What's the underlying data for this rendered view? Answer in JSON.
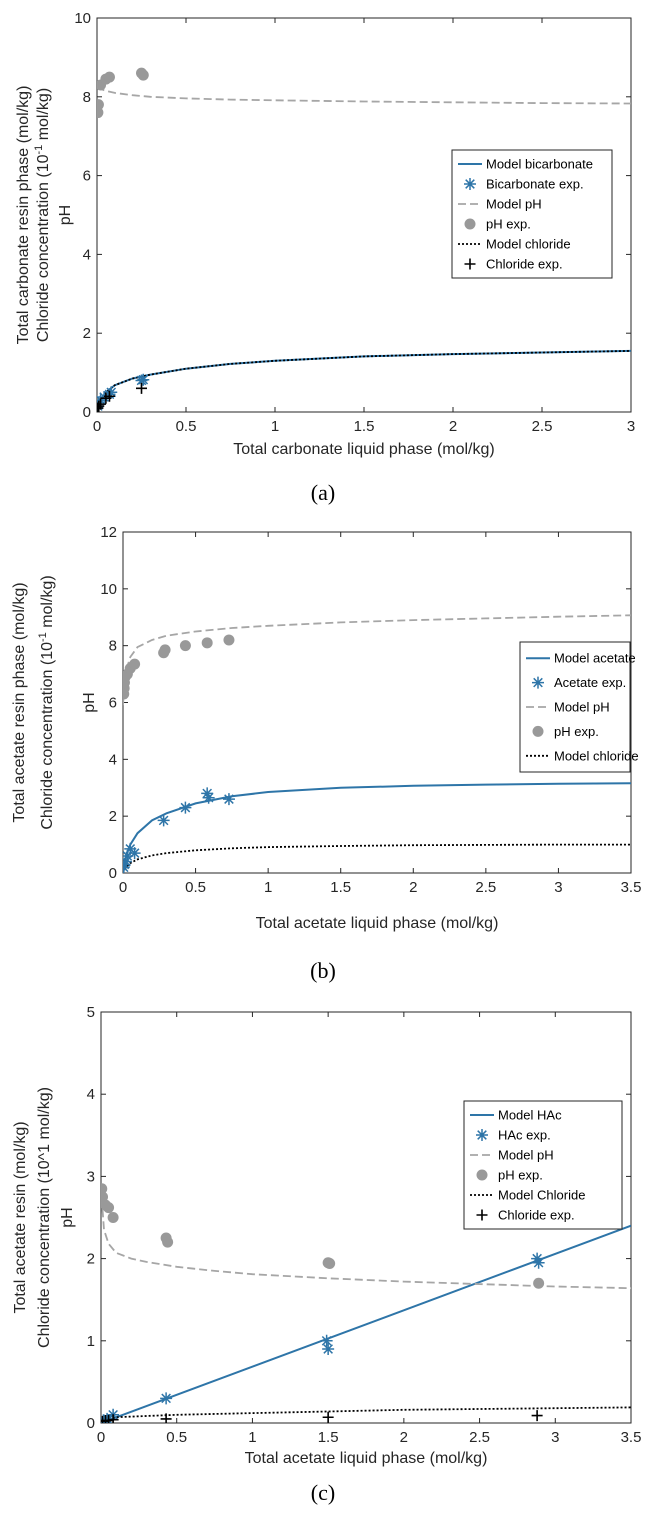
{
  "chart_data": [
    {
      "type": "line",
      "caption": "(a)",
      "xlabel": "Total carbonate liquid phase (mol/kg)",
      "ylabel_lines": [
        "Total carbonate resin phase (mol/kg)",
        "Chloride concentration (10",
        "-1",
        " mol/kg)",
        "pH"
      ],
      "xlim": [
        0,
        3
      ],
      "ylim": [
        0,
        10
      ],
      "xticks": [
        0,
        0.5,
        1,
        1.5,
        2,
        2.5,
        3
      ],
      "xtick_labels": [
        "0",
        "0.5",
        "1",
        "1.5",
        "2",
        "2.5",
        "3"
      ],
      "yticks": [
        0,
        2,
        4,
        6,
        8,
        10
      ],
      "ytick_labels": [
        "0",
        "2",
        "4",
        "6",
        "8",
        "10"
      ],
      "legend_position": "right",
      "series": [
        {
          "name": "Model bicarbonate",
          "kind": "line",
          "style": "solid",
          "color": "#2e75a8",
          "x": [
            0,
            0.02,
            0.05,
            0.1,
            0.2,
            0.3,
            0.5,
            0.75,
            1,
            1.5,
            2,
            2.5,
            3
          ],
          "y": [
            0,
            0.3,
            0.5,
            0.68,
            0.85,
            0.95,
            1.1,
            1.22,
            1.3,
            1.41,
            1.47,
            1.51,
            1.55
          ]
        },
        {
          "name": "Bicarbonate exp.",
          "kind": "marker",
          "marker": "asterisk",
          "color": "#2e75a8",
          "x": [
            0.005,
            0.01,
            0.02,
            0.04,
            0.07,
            0.08,
            0.25,
            0.26
          ],
          "y": [
            0.15,
            0.2,
            0.3,
            0.38,
            0.45,
            0.5,
            0.8,
            0.82
          ]
        },
        {
          "name": "Model pH",
          "kind": "line",
          "style": "dashed",
          "color": "#a6a6a6",
          "x": [
            0,
            0.02,
            0.05,
            0.1,
            0.2,
            0.3,
            0.5,
            0.75,
            1,
            1.5,
            2,
            2.5,
            3
          ],
          "y": [
            8.25,
            8.2,
            8.15,
            8.1,
            8.04,
            8.0,
            7.96,
            7.93,
            7.91,
            7.88,
            7.86,
            7.84,
            7.83
          ]
        },
        {
          "name": "pH exp.",
          "kind": "marker",
          "marker": "circle",
          "color": "#999999",
          "x": [
            0.005,
            0.008,
            0.02,
            0.05,
            0.07,
            0.25,
            0.26
          ],
          "y": [
            7.6,
            7.8,
            8.3,
            8.45,
            8.5,
            8.6,
            8.55
          ]
        },
        {
          "name": "Model chloride",
          "kind": "line",
          "style": "dotted",
          "color": "#000000",
          "x": [
            0,
            0.02,
            0.05,
            0.1,
            0.2,
            0.3,
            0.5,
            0.75,
            1,
            1.5,
            2,
            2.5,
            3
          ],
          "y": [
            0,
            0.3,
            0.5,
            0.68,
            0.85,
            0.95,
            1.1,
            1.22,
            1.3,
            1.41,
            1.47,
            1.51,
            1.55
          ]
        },
        {
          "name": "Chloride exp.",
          "kind": "marker",
          "marker": "plus",
          "color": "#000000",
          "x": [
            0.005,
            0.01,
            0.02,
            0.05,
            0.07,
            0.25
          ],
          "y": [
            0.1,
            0.15,
            0.2,
            0.35,
            0.4,
            0.6
          ]
        }
      ]
    },
    {
      "type": "line",
      "caption": "(b)",
      "xlabel": "Total acetate liquid phase (mol/kg)",
      "ylabel_lines": [
        "Total acetate resin phase (mol/kg)",
        "Chloride concentration (10",
        "-1",
        " mol/kg)",
        "pH"
      ],
      "xlim": [
        0,
        3.5
      ],
      "ylim": [
        0,
        12
      ],
      "xticks": [
        0,
        0.5,
        1,
        1.5,
        2,
        2.5,
        3,
        3.5
      ],
      "xtick_labels": [
        "0",
        "0.5",
        "1",
        "1.5",
        "2",
        "2.5",
        "3",
        "3.5"
      ],
      "yticks": [
        0,
        2,
        4,
        6,
        8,
        10,
        12
      ],
      "ytick_labels": [
        "0",
        "2",
        "4",
        "6",
        "8",
        "10",
        "12"
      ],
      "legend_position": "right",
      "series": [
        {
          "name": "Model acetate",
          "kind": "line",
          "style": "solid",
          "color": "#2e75a8",
          "x": [
            0,
            0.02,
            0.05,
            0.1,
            0.2,
            0.3,
            0.5,
            0.75,
            1,
            1.5,
            2,
            2.5,
            3,
            3.5
          ],
          "y": [
            0,
            0.6,
            1.0,
            1.4,
            1.85,
            2.1,
            2.45,
            2.7,
            2.85,
            3.0,
            3.07,
            3.11,
            3.14,
            3.16
          ]
        },
        {
          "name": "Acetate exp.",
          "kind": "marker",
          "marker": "asterisk",
          "color": "#2e75a8",
          "x": [
            0.005,
            0.01,
            0.02,
            0.03,
            0.05,
            0.08,
            0.28,
            0.43,
            0.58,
            0.59,
            0.73
          ],
          "y": [
            0.2,
            0.3,
            0.4,
            0.6,
            0.85,
            0.7,
            1.85,
            2.3,
            2.8,
            2.65,
            2.6
          ]
        },
        {
          "name": "Model pH",
          "kind": "line",
          "style": "dashed",
          "color": "#a6a6a6",
          "x": [
            0,
            0.01,
            0.02,
            0.05,
            0.1,
            0.2,
            0.3,
            0.5,
            0.75,
            1,
            1.5,
            2,
            2.5,
            3,
            3.5
          ],
          "y": [
            5.9,
            6.7,
            7.1,
            7.6,
            7.95,
            8.2,
            8.35,
            8.5,
            8.62,
            8.7,
            8.82,
            8.9,
            8.96,
            9.02,
            9.07
          ]
        },
        {
          "name": "pH exp.",
          "kind": "marker",
          "marker": "circle",
          "color": "#999999",
          "x": [
            0.005,
            0.008,
            0.01,
            0.015,
            0.03,
            0.05,
            0.08,
            0.28,
            0.29,
            0.43,
            0.58,
            0.73
          ],
          "y": [
            6.3,
            6.5,
            6.7,
            6.9,
            7.0,
            7.2,
            7.35,
            7.75,
            7.85,
            8.0,
            8.1,
            8.2
          ]
        },
        {
          "name": "Model chloride",
          "kind": "line",
          "style": "dotted",
          "color": "#000000",
          "x": [
            0,
            0.02,
            0.05,
            0.1,
            0.2,
            0.3,
            0.5,
            0.75,
            1,
            1.5,
            2,
            2.5,
            3,
            3.5
          ],
          "y": [
            0,
            0.2,
            0.35,
            0.48,
            0.62,
            0.7,
            0.8,
            0.87,
            0.91,
            0.95,
            0.98,
            0.99,
            1.0,
            1.0
          ]
        }
      ]
    },
    {
      "type": "line",
      "caption": "(c)",
      "xlabel": "Total acetate liquid phase (mol/kg)",
      "ylabel_lines": [
        "Total acetate resin (mol/kg)",
        "Chloride concentration (10^1 mol/kg)",
        "pH"
      ],
      "xlim": [
        0,
        3.5
      ],
      "ylim": [
        0,
        5
      ],
      "xticks": [
        0,
        0.5,
        1,
        1.5,
        2,
        2.5,
        3,
        3.5
      ],
      "xtick_labels": [
        "0",
        "0.5",
        "1",
        "1.5",
        "2",
        "2.5",
        "3",
        "3.5"
      ],
      "yticks": [
        0,
        1,
        2,
        3,
        4,
        5
      ],
      "ytick_labels": [
        "0",
        "1",
        "2",
        "3",
        "4",
        "5"
      ],
      "legend_position": "top-right",
      "series": [
        {
          "name": "Model HAc",
          "kind": "line",
          "style": "solid",
          "color": "#2e75a8",
          "x": [
            0,
            3.5
          ],
          "y": [
            0,
            2.4
          ]
        },
        {
          "name": "HAc exp.",
          "kind": "marker",
          "marker": "asterisk",
          "color": "#2e75a8",
          "x": [
            0.02,
            0.04,
            0.08,
            0.43,
            1.49,
            1.5,
            2.88,
            2.89
          ],
          "y": [
            0.03,
            0.05,
            0.1,
            0.3,
            1.0,
            0.9,
            2.0,
            1.95
          ]
        },
        {
          "name": "Model pH",
          "kind": "line",
          "style": "dashed",
          "color": "#a6a6a6",
          "x": [
            0.01,
            0.02,
            0.05,
            0.1,
            0.2,
            0.3,
            0.5,
            0.75,
            1,
            1.5,
            2,
            2.5,
            3,
            3.5
          ],
          "y": [
            2.6,
            2.35,
            2.18,
            2.07,
            2.0,
            1.96,
            1.9,
            1.85,
            1.81,
            1.76,
            1.72,
            1.69,
            1.66,
            1.64
          ]
        },
        {
          "name": "pH exp.",
          "kind": "marker",
          "marker": "circle",
          "color": "#999999",
          "x": [
            0.005,
            0.01,
            0.03,
            0.05,
            0.08,
            0.43,
            0.44,
            1.5,
            1.51,
            2.89
          ],
          "y": [
            2.85,
            2.75,
            2.65,
            2.62,
            2.5,
            2.25,
            2.2,
            1.95,
            1.94,
            1.7
          ]
        },
        {
          "name": "Model Chloride",
          "kind": "line",
          "style": "dotted",
          "color": "#000000",
          "x": [
            0,
            0.1,
            0.5,
            1,
            1.5,
            2,
            2.5,
            3,
            3.5
          ],
          "y": [
            0.03,
            0.07,
            0.1,
            0.12,
            0.14,
            0.16,
            0.17,
            0.18,
            0.19
          ]
        },
        {
          "name": "Chloride exp.",
          "kind": "marker",
          "marker": "plus",
          "color": "#000000",
          "x": [
            0.01,
            0.03,
            0.05,
            0.08,
            0.43,
            1.5,
            2.88
          ],
          "y": [
            0.02,
            0.03,
            0.03,
            0.04,
            0.05,
            0.07,
            0.09
          ]
        }
      ]
    }
  ]
}
